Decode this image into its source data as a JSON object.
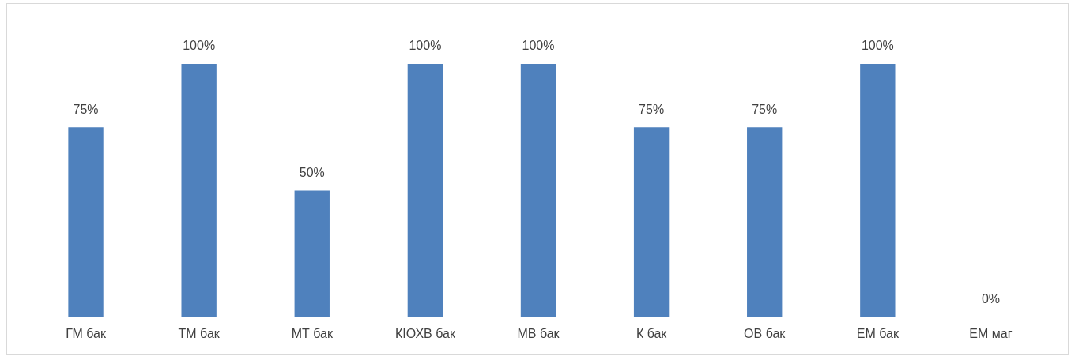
{
  "chart_data": {
    "type": "bar",
    "categories": [
      "ГМ бак",
      "ТМ бак",
      "МТ бак",
      "КІОХВ бак",
      "МВ бак",
      "К бак",
      "ОВ бак",
      "ЕМ бак",
      "ЕМ маг"
    ],
    "values": [
      75,
      100,
      50,
      100,
      100,
      75,
      75,
      100,
      0
    ],
    "value_labels": [
      "75%",
      "100%",
      "50%",
      "100%",
      "100%",
      "75%",
      "75%",
      "100%",
      "0%"
    ],
    "color": "#4f81bd",
    "grid": false,
    "legend": false
  }
}
